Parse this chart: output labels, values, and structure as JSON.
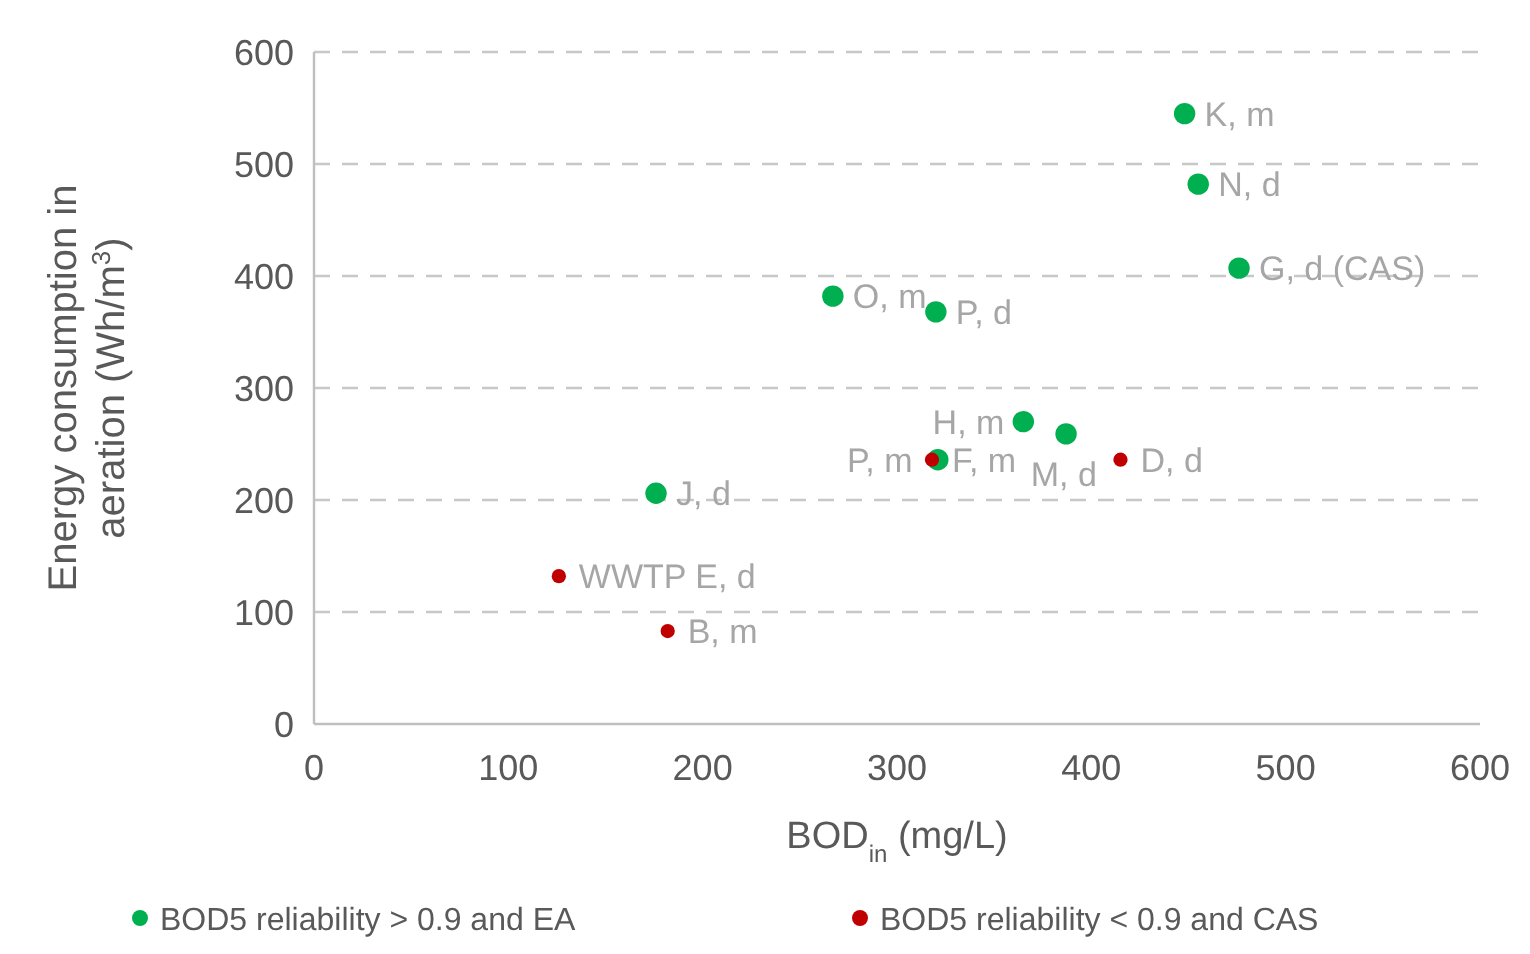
{
  "chart_data": {
    "type": "scatter",
    "xlabel": "BOD$_{in}$ (mg/L)",
    "ylabel": "Energy consumption in aeration (Wh/m$^{3}$)",
    "series": [
      {
        "name": "BOD5 reliability > 0.9 and EA",
        "color": "#00b050",
        "x": [
          448,
          455,
          476,
          267,
          320,
          365,
          387,
          321,
          176
        ],
        "values": [
          545,
          482,
          407,
          382,
          368,
          270,
          259,
          236,
          206
        ]
      },
      {
        "name": "BOD5 reliability < 0.9 and CAS",
        "color": "#c00000",
        "x": [
          415,
          318,
          126,
          182
        ],
        "values": [
          236,
          236,
          132,
          83
        ]
      }
    ],
    "annotations": [
      {
        "text": "K, m",
        "x": 448,
        "y": 545
      },
      {
        "text": "N, d",
        "x": 455,
        "y": 482
      },
      {
        "text": "G, d (CAS)",
        "x": 476,
        "y": 407
      },
      {
        "text": "O, m",
        "x": 267,
        "y": 382
      },
      {
        "text": "P, d",
        "x": 320,
        "y": 368
      },
      {
        "text": "H, m",
        "x": 365,
        "y": 270
      },
      {
        "text": "M, d",
        "x": 387,
        "y": 259
      },
      {
        "text": "D, d",
        "x": 415,
        "y": 236
      },
      {
        "text": "F, m",
        "x": 318,
        "y": 236
      },
      {
        "text": "P, m",
        "x": 321,
        "y": 236
      },
      {
        "text": "J, d",
        "x": 176,
        "y": 206
      },
      {
        "text": "WWTP E, d",
        "x": 126,
        "y": 132
      },
      {
        "text": "B, m",
        "x": 182,
        "y": 83
      }
    ],
    "xlim": [
      0,
      600
    ],
    "xticks": [
      0,
      100,
      200,
      300,
      400,
      500,
      600
    ],
    "ylim": [
      0,
      600
    ],
    "yticks": [
      0,
      100,
      200,
      300,
      400,
      500,
      600
    ],
    "grid": "y",
    "legend": "bottom",
    "marker": "circle"
  }
}
